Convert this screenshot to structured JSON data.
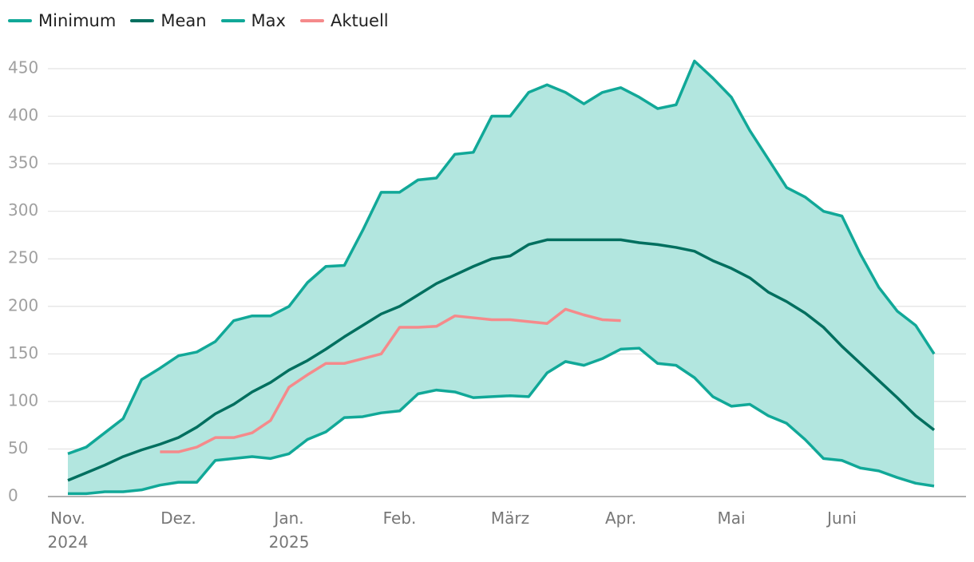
{
  "chart_data": {
    "type": "line",
    "categories": [
      "Nov. 2024",
      null,
      null,
      null,
      null,
      null,
      "Dez.",
      null,
      null,
      null,
      null,
      null,
      "Jan. 2025",
      null,
      null,
      null,
      null,
      null,
      "Feb.",
      null,
      null,
      null,
      null,
      null,
      "März",
      null,
      null,
      null,
      null,
      null,
      "Apr.",
      null,
      null,
      null,
      null,
      null,
      "Mai",
      null,
      null,
      null,
      null,
      null,
      "Juni",
      null,
      null,
      null,
      null,
      null
    ],
    "series": [
      {
        "name": "Minimum",
        "color": "#11a898",
        "values": [
          3,
          3,
          5,
          5,
          7,
          12,
          15,
          15,
          38,
          40,
          42,
          40,
          45,
          60,
          68,
          83,
          84,
          88,
          90,
          108,
          112,
          110,
          104,
          105,
          106,
          105,
          130,
          142,
          138,
          145,
          155,
          156,
          140,
          138,
          125,
          105,
          95,
          97,
          85,
          77,
          60,
          40,
          38,
          30,
          27,
          20,
          14,
          11
        ]
      },
      {
        "name": "Mean",
        "color": "#006f5f",
        "values": [
          17,
          25,
          33,
          42,
          49,
          55,
          62,
          73,
          87,
          97,
          110,
          120,
          133,
          143,
          155,
          168,
          180,
          192,
          200,
          212,
          224,
          233,
          242,
          250,
          253,
          265,
          270,
          270,
          270,
          270,
          270,
          267,
          265,
          262,
          258,
          248,
          240,
          230,
          215,
          205,
          193,
          178,
          158,
          140,
          122,
          104,
          85,
          70
        ]
      },
      {
        "name": "Max",
        "color": "#11a898",
        "values": [
          45,
          52,
          67,
          82,
          123,
          135,
          148,
          152,
          163,
          185,
          190,
          190,
          200,
          225,
          242,
          243,
          280,
          320,
          320,
          333,
          335,
          360,
          362,
          400,
          400,
          425,
          433,
          425,
          413,
          425,
          430,
          420,
          408,
          412,
          458,
          440,
          420,
          385,
          355,
          325,
          315,
          300,
          295,
          255,
          220,
          195,
          180,
          150
        ]
      },
      {
        "name": "Aktuell",
        "color": "#f58a8b",
        "values": [
          null,
          null,
          null,
          null,
          null,
          47,
          47,
          52,
          62,
          62,
          67,
          80,
          115,
          128,
          140,
          140,
          145,
          150,
          178,
          178,
          179,
          190,
          188,
          186,
          186,
          184,
          182,
          197,
          191,
          186,
          185,
          null,
          null,
          null,
          null,
          null,
          null,
          null,
          null,
          null,
          null,
          null,
          null,
          null,
          null,
          null,
          null,
          null
        ]
      }
    ],
    "band_color": "#b2e6df",
    "ylim": [
      0,
      450
    ],
    "yticks": [
      0,
      50,
      100,
      150,
      200,
      250,
      300,
      350,
      400,
      450
    ],
    "grid": true
  }
}
